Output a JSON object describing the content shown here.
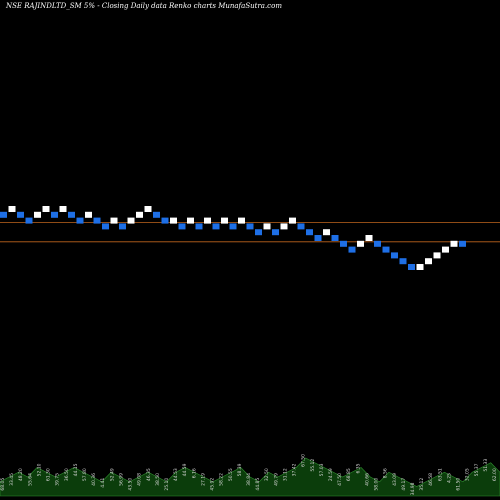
{
  "title": "NSE RAJINDLTD_SM 5% -  Closing Daily data  Renko  charts MunafaSutra.com",
  "colors": {
    "background": "#000000",
    "up_brick": "#ffffff",
    "down_brick": "#1e6fe6",
    "level_lines": "#c0651e",
    "volume_fill": "#0b3d0b",
    "volume_stroke": "#2f8f2f",
    "volume_text": "#d8d8d8"
  },
  "chart_data": {
    "type": "renko",
    "brick_size_percent": 5,
    "bricks": [
      {
        "dir": "down",
        "level": 10
      },
      {
        "dir": "up",
        "level": 11
      },
      {
        "dir": "down",
        "level": 10
      },
      {
        "dir": "down",
        "level": 9
      },
      {
        "dir": "up",
        "level": 10
      },
      {
        "dir": "up",
        "level": 11
      },
      {
        "dir": "down",
        "level": 10
      },
      {
        "dir": "up",
        "level": 11
      },
      {
        "dir": "down",
        "level": 10
      },
      {
        "dir": "down",
        "level": 9
      },
      {
        "dir": "up",
        "level": 10
      },
      {
        "dir": "down",
        "level": 9
      },
      {
        "dir": "down",
        "level": 8
      },
      {
        "dir": "up",
        "level": 9
      },
      {
        "dir": "down",
        "level": 8
      },
      {
        "dir": "up",
        "level": 9
      },
      {
        "dir": "up",
        "level": 10
      },
      {
        "dir": "up",
        "level": 11
      },
      {
        "dir": "down",
        "level": 10
      },
      {
        "dir": "down",
        "level": 9
      },
      {
        "dir": "up",
        "level": 9
      },
      {
        "dir": "down",
        "level": 8
      },
      {
        "dir": "up",
        "level": 9
      },
      {
        "dir": "down",
        "level": 8
      },
      {
        "dir": "up",
        "level": 9
      },
      {
        "dir": "down",
        "level": 8
      },
      {
        "dir": "up",
        "level": 9
      },
      {
        "dir": "down",
        "level": 8
      },
      {
        "dir": "up",
        "level": 9
      },
      {
        "dir": "down",
        "level": 8
      },
      {
        "dir": "down",
        "level": 7
      },
      {
        "dir": "up",
        "level": 8
      },
      {
        "dir": "down",
        "level": 7
      },
      {
        "dir": "up",
        "level": 8
      },
      {
        "dir": "up",
        "level": 9
      },
      {
        "dir": "down",
        "level": 8
      },
      {
        "dir": "down",
        "level": 7
      },
      {
        "dir": "down",
        "level": 6
      },
      {
        "dir": "up",
        "level": 7
      },
      {
        "dir": "down",
        "level": 6
      },
      {
        "dir": "down",
        "level": 5
      },
      {
        "dir": "down",
        "level": 4
      },
      {
        "dir": "up",
        "level": 5
      },
      {
        "dir": "up",
        "level": 6
      },
      {
        "dir": "down",
        "level": 5
      },
      {
        "dir": "down",
        "level": 4
      },
      {
        "dir": "down",
        "level": 3
      },
      {
        "dir": "down",
        "level": 2
      },
      {
        "dir": "down",
        "level": 1
      },
      {
        "dir": "up",
        "level": 1
      },
      {
        "dir": "up",
        "level": 2
      },
      {
        "dir": "up",
        "level": 3
      },
      {
        "dir": "up",
        "level": 4
      },
      {
        "dir": "up",
        "level": 5
      },
      {
        "dir": "down",
        "level": 5
      }
    ],
    "horizontal_levels": [
      9,
      5
    ],
    "volume": [
      3,
      4,
      5,
      4,
      6,
      5,
      4,
      5,
      6,
      5,
      4,
      3,
      5,
      4,
      3,
      4,
      5,
      4,
      3,
      5,
      6,
      5,
      4,
      3,
      4,
      5,
      6,
      4,
      3,
      5,
      4,
      5,
      6,
      8,
      7,
      6,
      5,
      4,
      5,
      6,
      4,
      3,
      5,
      4,
      3,
      2,
      3,
      4,
      5,
      4,
      3,
      5,
      6,
      7,
      5
    ],
    "volume_labels": [
      "68.05",
      "33.45",
      "48.20",
      "55.64",
      "52.10",
      "61.30",
      "39.75",
      "36.50",
      "44.15",
      "57.80",
      "40.36",
      "4.41",
      "52.49",
      "56.99",
      "43.50",
      "49.08",
      "46.35",
      "38.50",
      "25.10",
      "44.53",
      "44.59",
      "6.16",
      "27.19",
      "45.92",
      "58.22",
      "50.55",
      "58.39",
      "38.84",
      "44.85",
      "32.50",
      "49.79",
      "31.12",
      "37.42",
      "67.50",
      "55.12",
      "57.03",
      "24.59",
      "47.50",
      "68.85",
      "6.35",
      "40.66",
      "58.00",
      "8.56",
      "43.09",
      "49.17",
      "34.98",
      "35.12",
      "46.58",
      "63.51",
      "4.25",
      "61.50",
      "32.05",
      "55.37",
      "51.33",
      "62.00"
    ]
  }
}
